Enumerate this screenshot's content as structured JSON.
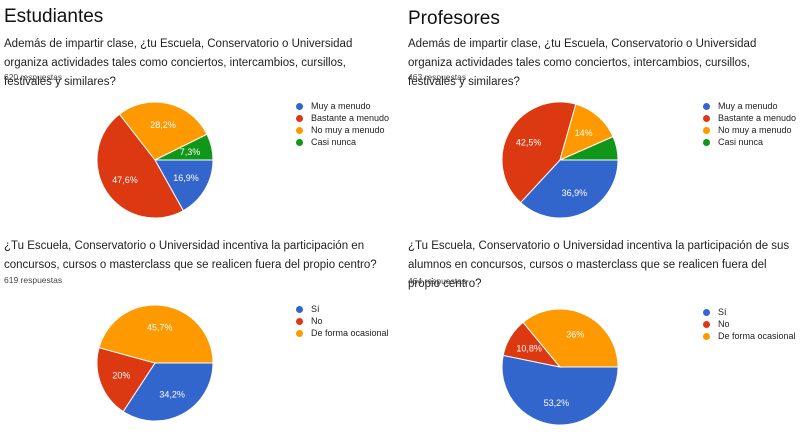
{
  "left_title": "Estudiantes",
  "right_title": "Profesores",
  "colors": {
    "blue": "#3366cc",
    "red": "#dc3912",
    "orange": "#ff9900",
    "green": "#109618"
  },
  "panels": [
    {
      "question": "Además de impartir clase, ¿tu Escuela, Conservatorio o Universidad organiza actividades tales como conciertos, intercambios, cursillos, festivales y similares?",
      "count": "620 respuestas",
      "legend": [
        "Muy a menudo",
        "Bastante a menudo",
        "No muy a menudo",
        "Casi nunca"
      ]
    },
    {
      "question": "Además de impartir clase, ¿tu Escuela, Conservatorio o Universidad organiza actividades tales como conciertos, intercambios, cursillos, festivales y similares?",
      "count": "463 respuestas",
      "legend": [
        "Muy a menudo",
        "Bastante a menudo",
        "No muy a menudo",
        "Casi nunca"
      ]
    },
    {
      "question": "¿Tu Escuela, Conservatorio o Universidad incentiva la participación en concursos, cursos o masterclass que se realicen fuera del propio centro?",
      "count": "619 respuestas",
      "legend": [
        "Sí",
        "No",
        "De forma ocasional"
      ]
    },
    {
      "question": "¿Tu Escuela, Conservatorio o Universidad incentiva la participación de sus alumnos en concursos, cursos o masterclass que se realicen fuera del propio centro?",
      "count": "464 respuestas",
      "legend": [
        "Sí",
        "No",
        "De forma ocasional"
      ]
    }
  ],
  "chart_data": [
    {
      "type": "pie",
      "categories": [
        "Muy a menudo",
        "Bastante a menudo",
        "No muy a menudo",
        "Casi nunca"
      ],
      "values": [
        16.9,
        47.6,
        28.2,
        7.3
      ],
      "labels": [
        "16,9%",
        "47,6%",
        "28,2%",
        "7,3%"
      ],
      "colors": [
        "#3366cc",
        "#dc3912",
        "#ff9900",
        "#109618"
      ]
    },
    {
      "type": "pie",
      "categories": [
        "Muy a menudo",
        "Bastante a menudo",
        "No muy a menudo",
        "Casi nunca"
      ],
      "values": [
        36.9,
        42.5,
        14,
        6.6
      ],
      "labels": [
        "36,9%",
        "42,5%",
        "14%",
        ""
      ],
      "colors": [
        "#3366cc",
        "#dc3912",
        "#ff9900",
        "#109618"
      ]
    },
    {
      "type": "pie",
      "categories": [
        "Sí",
        "No",
        "De forma ocasional"
      ],
      "values": [
        34.2,
        20,
        45.7
      ],
      "labels": [
        "34,2%",
        "20%",
        "45,7%"
      ],
      "colors": [
        "#3366cc",
        "#dc3912",
        "#ff9900"
      ]
    },
    {
      "type": "pie",
      "categories": [
        "Sí",
        "No",
        "De forma ocasional"
      ],
      "values": [
        53.2,
        10.8,
        36
      ],
      "labels": [
        "53,2%",
        "10,8%",
        "36%"
      ],
      "colors": [
        "#3366cc",
        "#dc3912",
        "#ff9900"
      ]
    }
  ]
}
